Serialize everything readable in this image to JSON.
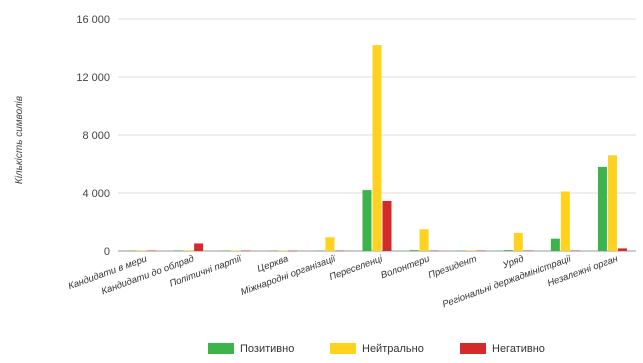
{
  "chart_data": {
    "type": "bar",
    "ylabel": "Кількість символів",
    "ylim": [
      0,
      16000
    ],
    "yticks": [
      0,
      4000,
      8000,
      12000,
      16000
    ],
    "ytick_labels": [
      "0",
      "4 000",
      "8 000",
      "12 000",
      "16 000"
    ],
    "grid": true,
    "legend_position": "bottom",
    "categories": [
      "Кандидати в мери",
      "Кандидати до облрад",
      "Політичні партії",
      "Церква",
      "Міжнародні організації",
      "Переселенці",
      "Волонтери",
      "Президент",
      "Уряд",
      "Регіональні держадміністрації",
      "Незалежні орган"
    ],
    "series": [
      {
        "name": "Позитивно",
        "color": "#3cb44b",
        "values": [
          30,
          40,
          30,
          20,
          30,
          4200,
          60,
          30,
          60,
          850,
          5800
        ]
      },
      {
        "name": "Нейтрально",
        "color": "#ffd21f",
        "values": [
          40,
          50,
          40,
          30,
          950,
          14200,
          1500,
          50,
          1250,
          4100,
          6600
        ]
      },
      {
        "name": "Негативно",
        "color": "#d42a2a",
        "values": [
          30,
          520,
          30,
          20,
          30,
          3450,
          30,
          30,
          30,
          30,
          180
        ]
      }
    ]
  }
}
